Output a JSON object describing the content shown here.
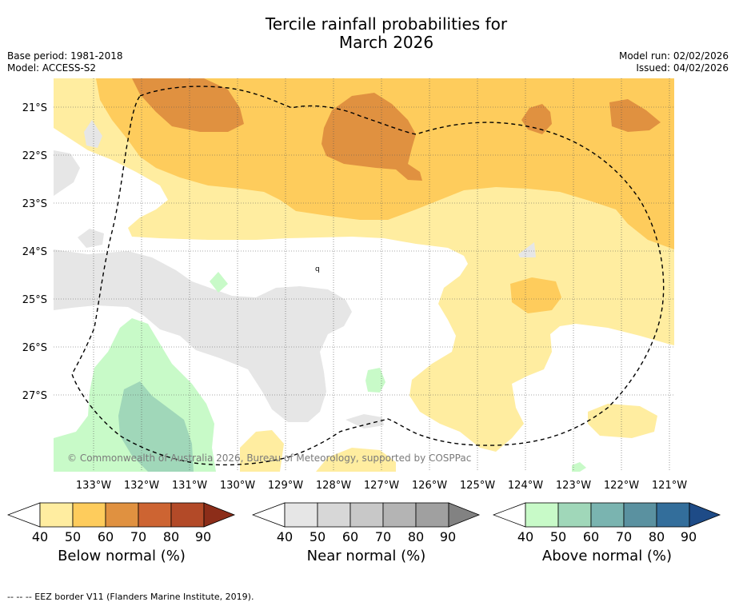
{
  "title": {
    "line1": "Tercile rainfall probabilities for",
    "line2": "March 2026"
  },
  "meta": {
    "base_period": "Base period: 1981-2018",
    "model": "Model: ACCESS-S2",
    "model_run": "Model run: 02/02/2026",
    "issued": "Issued: 04/02/2026"
  },
  "map": {
    "lat_labels": [
      "21°S",
      "22°S",
      "23°S",
      "24°S",
      "25°S",
      "26°S",
      "27°S"
    ],
    "lon_labels": [
      "133°W",
      "132°W",
      "131°W",
      "130°W",
      "129°W",
      "128°W",
      "127°W",
      "126°W",
      "125°W",
      "124°W",
      "123°W",
      "122°W",
      "121°W"
    ],
    "copyright": "© Commonwealth of Australia 2026, Bureau of Meteorology, supported by COSPPac",
    "contour_mark": "q"
  },
  "legends": [
    {
      "title": "Below normal (%)",
      "ticks": [
        "40",
        "50",
        "60",
        "70",
        "80",
        "90"
      ],
      "colors": [
        "#ffeda0",
        "#fecc5c",
        "#e09140",
        "#cd6432",
        "#b34a28",
        "#8c2d19"
      ]
    },
    {
      "title": "Near normal (%)",
      "ticks": [
        "40",
        "50",
        "60",
        "70",
        "80",
        "90"
      ],
      "colors": [
        "#e6e6e6",
        "#d7d7d7",
        "#c8c8c8",
        "#b4b4b4",
        "#a0a0a0",
        "#828282"
      ]
    },
    {
      "title": "Above normal (%)",
      "ticks": [
        "40",
        "50",
        "60",
        "70",
        "80",
        "90"
      ],
      "colors": [
        "#c8fac8",
        "#a0d7b9",
        "#7ab4b0",
        "#5a91a0",
        "#336e9b",
        "#1e4b87"
      ]
    }
  ],
  "footnote": "--  --  -- EEZ border V11 (Flanders Marine Institute, 2019)."
}
